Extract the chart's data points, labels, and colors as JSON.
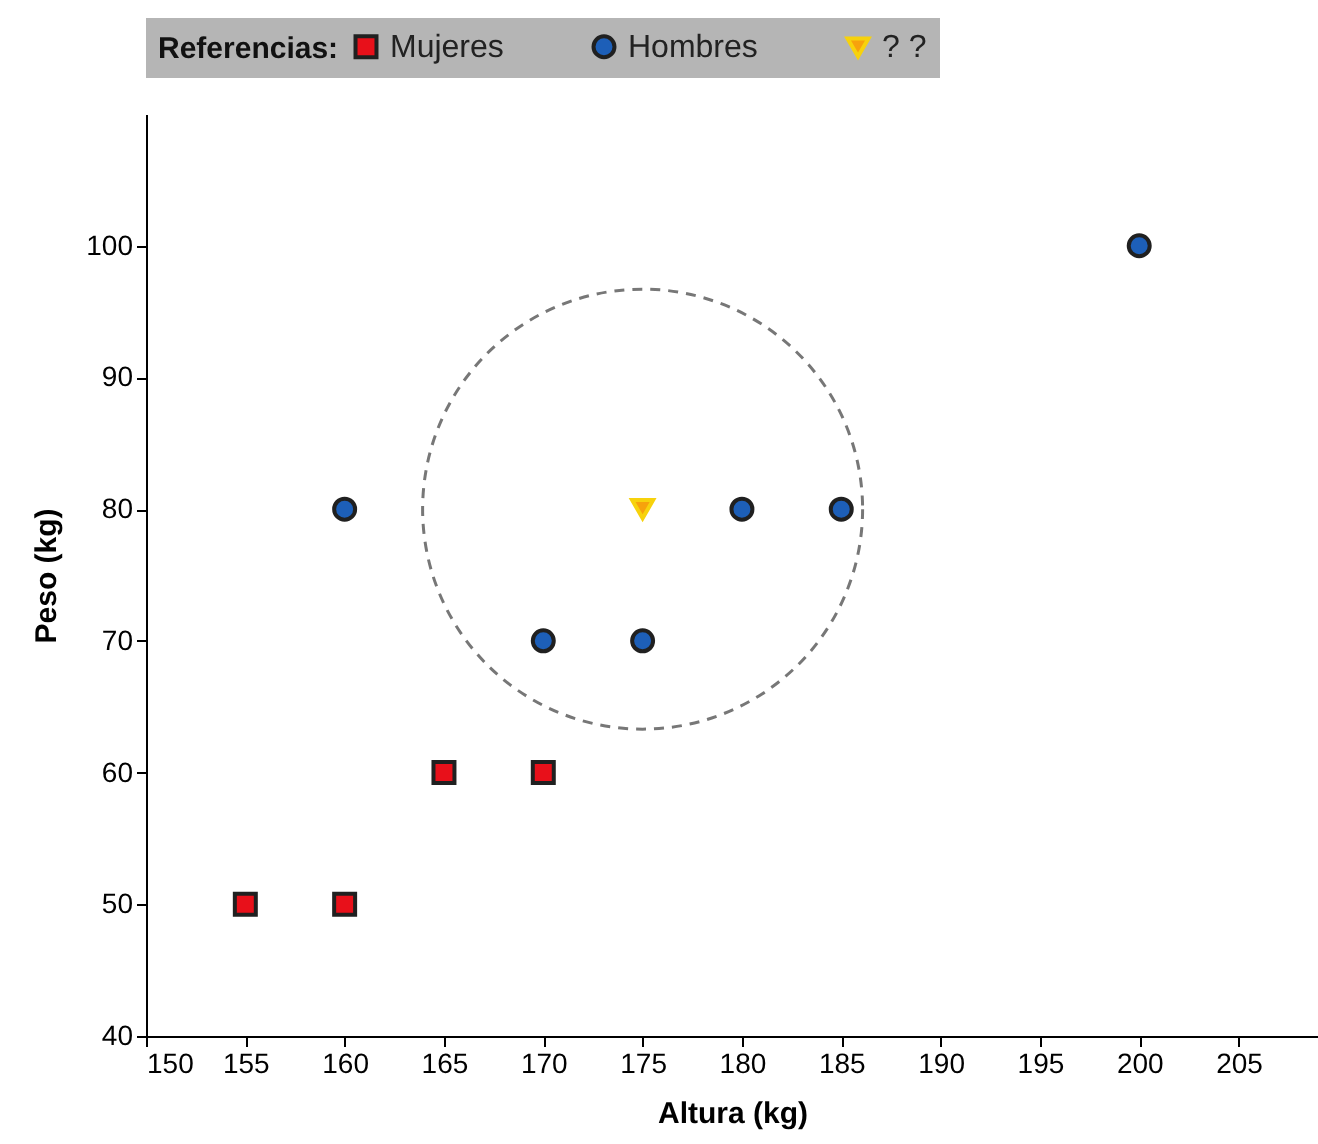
{
  "chart_data": {
    "type": "scatter",
    "xlabel": "Altura (kg)",
    "ylabel": "Peso (kg)",
    "legend_title": "Referencias:",
    "legend": "top",
    "xlim": [
      150,
      209
    ],
    "xticks": [
      150,
      155,
      160,
      165,
      170,
      175,
      180,
      185,
      190,
      195,
      200,
      205
    ],
    "ylim": [
      40,
      110
    ],
    "yticks": [
      40,
      50,
      60,
      70,
      80,
      90,
      100
    ],
    "series": [
      {
        "name": "Mujeres",
        "color": "#e8101a",
        "marker": "square",
        "x": [
          155,
          160,
          165,
          170
        ],
        "values": [
          50,
          50,
          60,
          60
        ]
      },
      {
        "name": "Hombres",
        "color": "#1d5fb8",
        "marker": "circle",
        "x": [
          160,
          170,
          175,
          180,
          185,
          200
        ],
        "values": [
          80,
          70,
          70,
          80,
          80,
          100
        ]
      },
      {
        "name": "? ?",
        "color": "#f7a20c",
        "marker": "triangle",
        "x": [
          175
        ],
        "values": [
          80
        ]
      }
    ]
  }
}
